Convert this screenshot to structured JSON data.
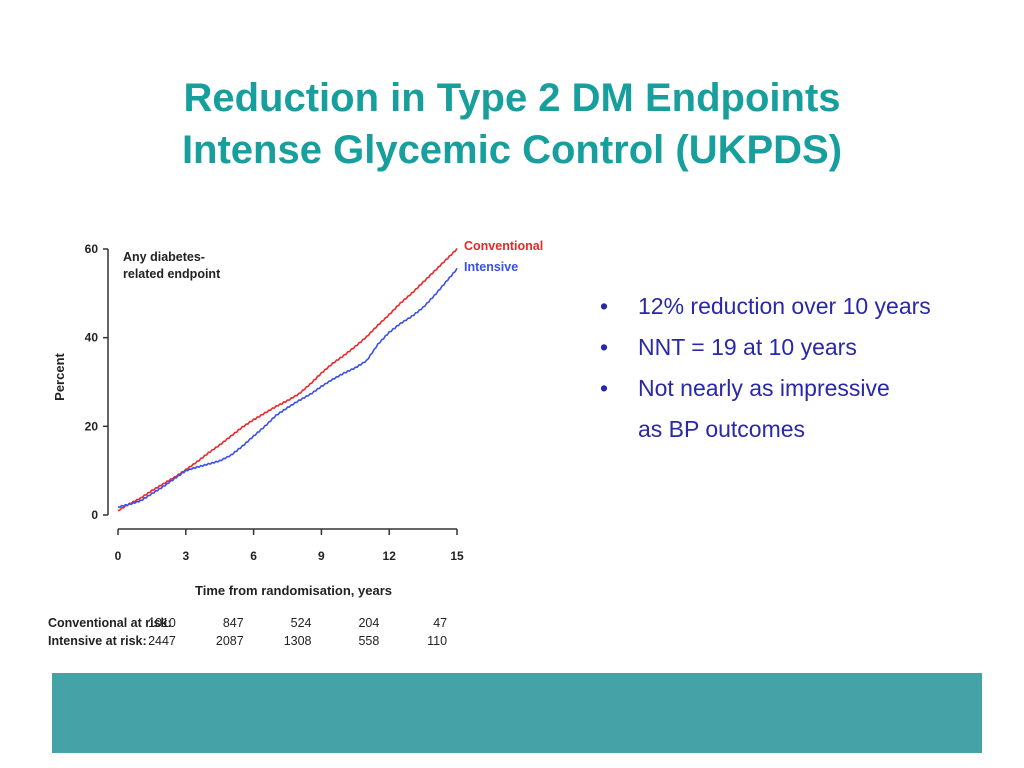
{
  "slide": {
    "title_line1": "Reduction in Type 2 DM Endpoints",
    "title_line2": "Intense Glycemic Control (UKPDS)",
    "bullets": [
      {
        "text": "12% reduction over 10 years"
      },
      {
        "text": "NNT = 19 at 10 years"
      },
      {
        "text": "Not nearly as impressive",
        "continuation": "as BP outcomes"
      }
    ],
    "bullet_glyph": "•"
  },
  "colors": {
    "title": "#169f9d",
    "bullets": "#2828a8",
    "conventional": "#e8282a",
    "intensive": "#3a50e8",
    "footer_bar": "#45a2a7"
  },
  "chart_data": {
    "type": "line",
    "annotation": [
      "Any diabetes-",
      "related endpoint"
    ],
    "xlabel": "Time from randomisation, years",
    "ylabel": "Percent",
    "xlim": [
      0,
      15
    ],
    "ylim": [
      0,
      60
    ],
    "xticks": [
      0,
      3,
      6,
      9,
      12,
      15
    ],
    "yticks": [
      0,
      20,
      40,
      60
    ],
    "grid": false,
    "legend_position": "top-right",
    "series": [
      {
        "name": "Conventional",
        "color": "#e8282a",
        "x": [
          0,
          0.5,
          1,
          1.5,
          2,
          2.5,
          3,
          3.5,
          4,
          4.5,
          5,
          5.5,
          6,
          6.5,
          7,
          7.5,
          8,
          8.5,
          9,
          9.5,
          10,
          10.5,
          11,
          11.5,
          12,
          12.5,
          13,
          13.5,
          14,
          14.5,
          15
        ],
        "values": [
          1.0,
          2.5,
          3.8,
          5.5,
          7.0,
          8.5,
          10.2,
          12.0,
          14.0,
          15.8,
          17.8,
          19.8,
          21.5,
          23.0,
          24.5,
          25.8,
          27.3,
          29.5,
          32.0,
          34.2,
          36.0,
          38.0,
          40.2,
          42.8,
          45.2,
          47.8,
          50.0,
          52.5,
          55.0,
          57.5,
          60.0
        ]
      },
      {
        "name": "Intensive",
        "color": "#3a50e8",
        "x": [
          0,
          0.5,
          1,
          1.5,
          2,
          2.5,
          3,
          3.5,
          4,
          4.5,
          5,
          5.5,
          6,
          6.5,
          7,
          7.5,
          8,
          8.5,
          9,
          9.5,
          10,
          10.5,
          11,
          11.5,
          12,
          12.5,
          13,
          13.5,
          14,
          14.5,
          15
        ],
        "values": [
          1.8,
          2.4,
          3.2,
          4.8,
          6.4,
          8.2,
          10.0,
          10.8,
          11.5,
          12.2,
          13.5,
          15.5,
          17.8,
          20.0,
          22.5,
          24.2,
          25.8,
          27.2,
          29.0,
          30.6,
          32.0,
          33.2,
          34.8,
          38.5,
          41.2,
          43.2,
          44.8,
          46.8,
          49.5,
          52.5,
          55.5
        ]
      }
    ],
    "at_risk": {
      "times": [
        0,
        3,
        6,
        9,
        12,
        15
      ],
      "rows": [
        {
          "label": "Conventional at risk:",
          "values": [
            "1010",
            "847",
            "524",
            "204",
            "47"
          ]
        },
        {
          "label": "Intensive at risk:",
          "values": [
            "2447",
            "2087",
            "1308",
            "558",
            "110"
          ]
        }
      ]
    }
  }
}
